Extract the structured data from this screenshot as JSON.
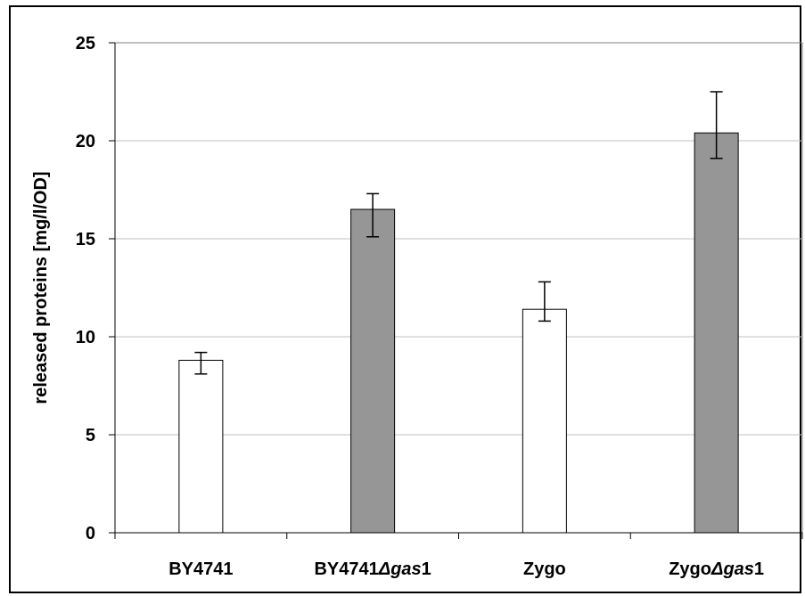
{
  "chart_data": {
    "type": "bar",
    "title": "",
    "xlabel": "",
    "ylabel": "released proteins  [mg/l/OD]",
    "ylim": [
      0,
      25
    ],
    "yticks": [
      0,
      5,
      10,
      15,
      20,
      25
    ],
    "grid": true,
    "legend": "none",
    "categories": [
      {
        "prefix": "BY4741",
        "delta": "",
        "italic": "",
        "suffix": ""
      },
      {
        "prefix": "BY4741",
        "delta": "Δ",
        "italic": "gas",
        "suffix": "1"
      },
      {
        "prefix": "Zygo",
        "delta": "",
        "italic": "",
        "suffix": ""
      },
      {
        "prefix": "Zygo",
        "delta": "Δ",
        "italic": "gas",
        "suffix": "1"
      }
    ],
    "category_labels": [
      "BY4741",
      "BY4741Δgas1",
      "Zygo",
      "ZygoΔgas1"
    ],
    "values": [
      8.8,
      16.5,
      11.4,
      20.4
    ],
    "error_low": [
      8.1,
      15.1,
      10.8,
      19.1
    ],
    "error_high": [
      9.2,
      17.3,
      12.8,
      22.5
    ],
    "bar_colors": [
      "#ffffff",
      "#969696",
      "#ffffff",
      "#969696"
    ]
  }
}
